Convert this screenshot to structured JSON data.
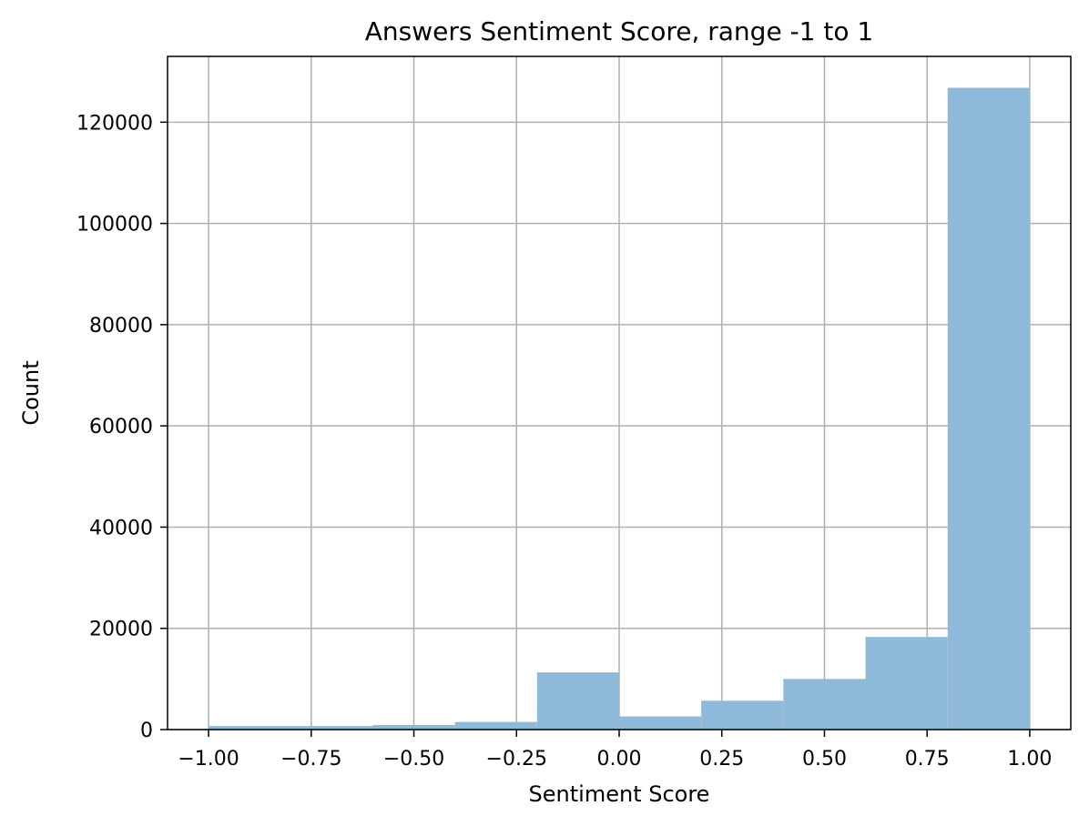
{
  "chart_data": {
    "type": "bar",
    "title": "Answers Sentiment Score, range -1 to 1",
    "xlabel": "Sentiment Score",
    "ylabel": "Count",
    "xlim": [
      -1.1,
      1.1
    ],
    "ylim": [
      0,
      133000
    ],
    "grid": true,
    "bar_color": "#8fb9d8",
    "grid_color": "#b0b0b0",
    "bins": [
      {
        "x0": -1.0,
        "x1": -0.8,
        "value": 700
      },
      {
        "x0": -0.8,
        "x1": -0.6,
        "value": 700
      },
      {
        "x0": -0.6,
        "x1": -0.4,
        "value": 900
      },
      {
        "x0": -0.4,
        "x1": -0.2,
        "value": 1500
      },
      {
        "x0": -0.2,
        "x1": 0.0,
        "value": 11300
      },
      {
        "x0": 0.0,
        "x1": 0.2,
        "value": 2600
      },
      {
        "x0": 0.2,
        "x1": 0.4,
        "value": 5700
      },
      {
        "x0": 0.4,
        "x1": 0.6,
        "value": 10000
      },
      {
        "x0": 0.6,
        "x1": 0.8,
        "value": 18300
      },
      {
        "x0": 0.8,
        "x1": 1.0,
        "value": 126800
      }
    ],
    "x_ticks": [
      {
        "value": -1.0,
        "label": "−1.00"
      },
      {
        "value": -0.75,
        "label": "−0.75"
      },
      {
        "value": -0.5,
        "label": "−0.50"
      },
      {
        "value": -0.25,
        "label": "−0.25"
      },
      {
        "value": 0.0,
        "label": "0.00"
      },
      {
        "value": 0.25,
        "label": "0.25"
      },
      {
        "value": 0.5,
        "label": "0.50"
      },
      {
        "value": 0.75,
        "label": "0.75"
      },
      {
        "value": 1.0,
        "label": "1.00"
      }
    ],
    "y_ticks": [
      {
        "value": 0,
        "label": "0"
      },
      {
        "value": 20000,
        "label": "20000"
      },
      {
        "value": 40000,
        "label": "40000"
      },
      {
        "value": 60000,
        "label": "60000"
      },
      {
        "value": 80000,
        "label": "80000"
      },
      {
        "value": 100000,
        "label": "100000"
      },
      {
        "value": 120000,
        "label": "120000"
      }
    ]
  }
}
